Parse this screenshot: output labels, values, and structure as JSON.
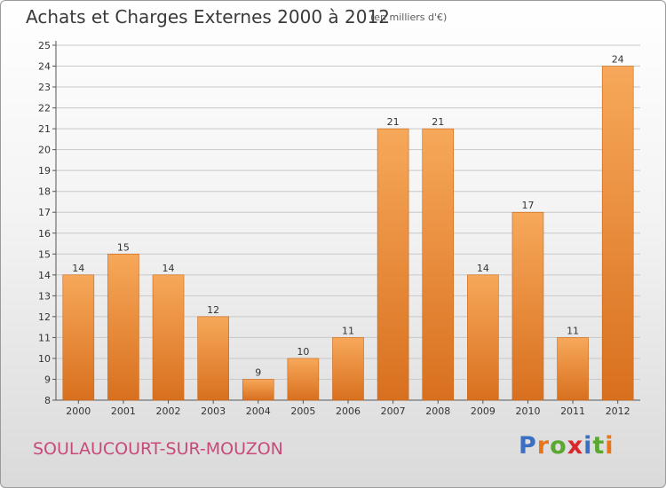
{
  "header": {
    "title": "Achats et Charges Externes 2000 à 2012",
    "subtitle": "(en milliers d'€)"
  },
  "footer": {
    "commune": "SOULAUCOURT-SUR-MOUZON",
    "logo": {
      "text": "Proxiti",
      "letters": [
        "P",
        "r",
        "o",
        "x",
        "i",
        "t",
        "i"
      ],
      "colors": [
        "#3b6fc4",
        "#e8751a",
        "#5aa832",
        "#d8282a",
        "#3b6fc4",
        "#5aa832",
        "#e8751a"
      ]
    }
  },
  "colors": {
    "bar_light": "#f7a85a",
    "bar_dark": "#d8701e",
    "grid": "#c8c8c8",
    "axis": "#555555",
    "text": "#333333"
  },
  "chart_data": {
    "type": "bar",
    "title": "Achats et Charges Externes 2000 à 2012",
    "subtitle": "(en milliers d'€)",
    "xlabel": "",
    "ylabel": "",
    "categories": [
      "2000",
      "2001",
      "2002",
      "2003",
      "2004",
      "2005",
      "2006",
      "2007",
      "2008",
      "2009",
      "2010",
      "2011",
      "2012"
    ],
    "values": [
      14,
      15,
      14,
      12,
      9,
      10,
      11,
      21,
      21,
      14,
      17,
      11,
      24
    ],
    "data_labels": [
      "14",
      "15",
      "14",
      "12",
      "9",
      "10",
      "11",
      "21",
      "21",
      "14",
      "17",
      "11",
      "24"
    ],
    "ylim": [
      8,
      25
    ],
    "yticks": [
      "8",
      "9",
      "10",
      "11",
      "12",
      "13",
      "14",
      "15",
      "16",
      "17",
      "18",
      "19",
      "20",
      "21",
      "22",
      "23",
      "24",
      "25"
    ],
    "grid": true,
    "legend": "none"
  }
}
